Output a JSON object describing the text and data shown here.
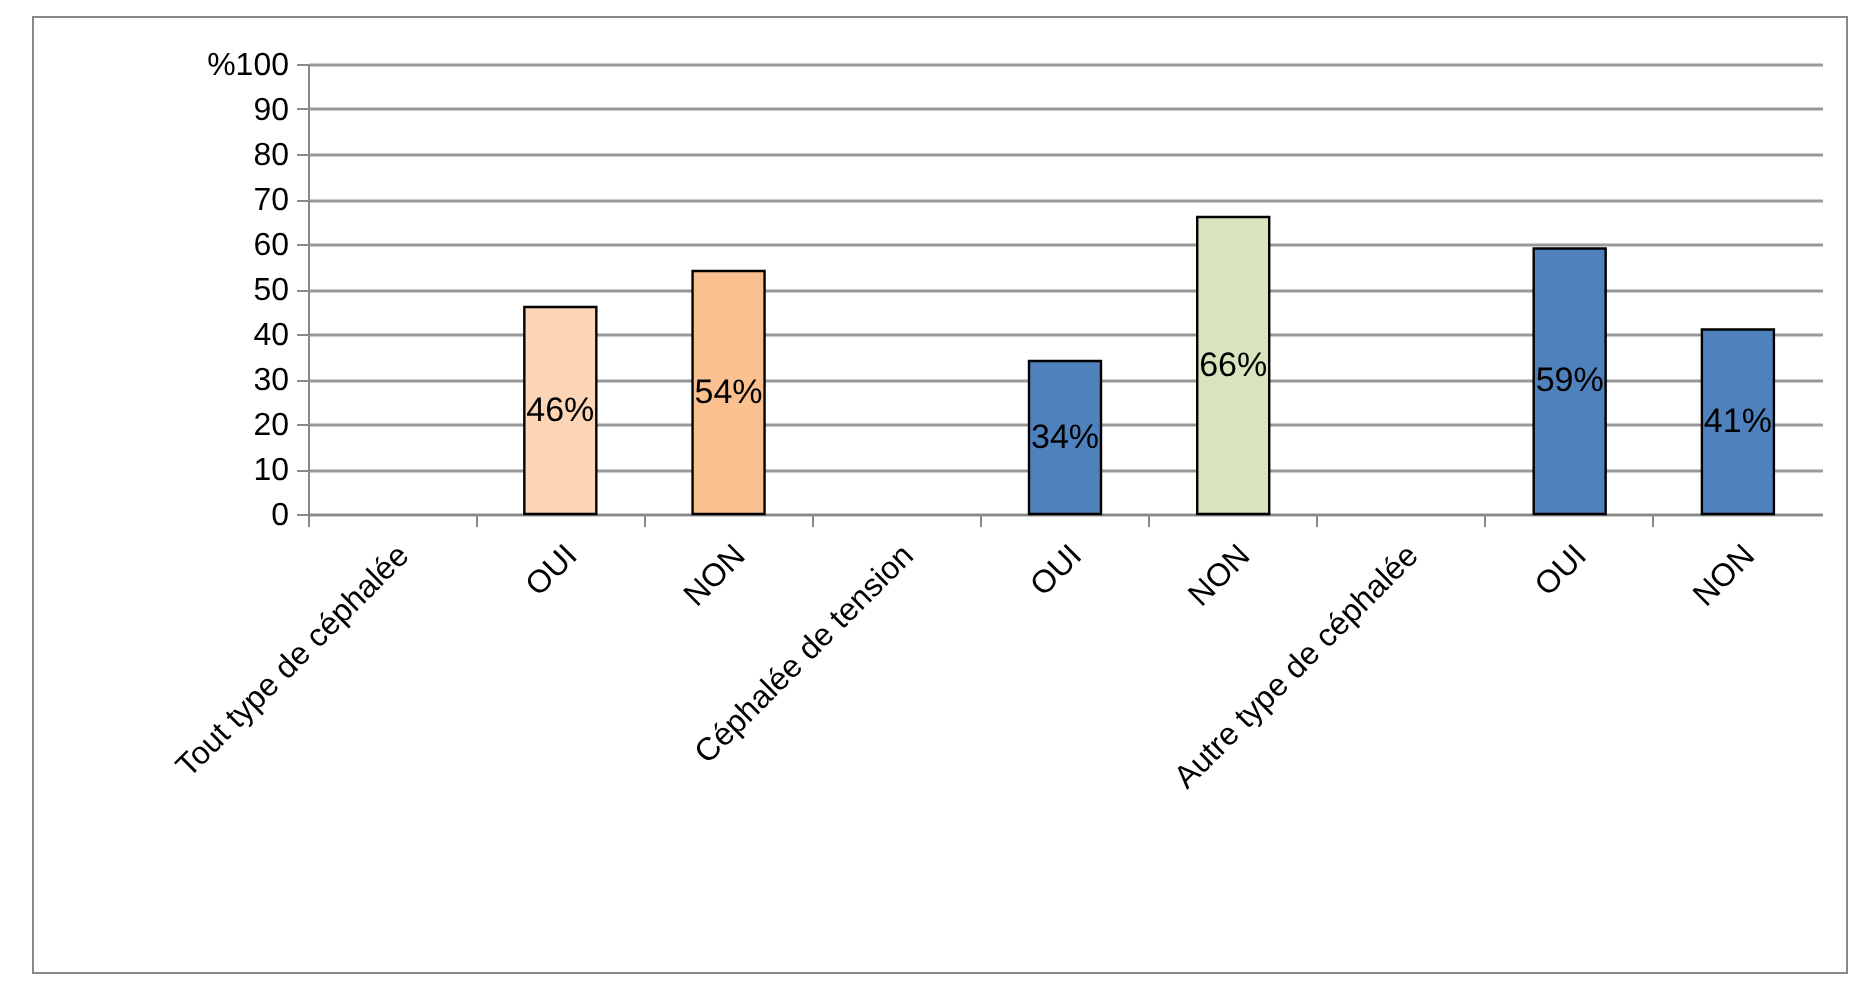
{
  "chart_data": {
    "type": "bar",
    "categories": [
      "Tout type de céphalée",
      "OUI",
      "NON",
      "Céphalée de tension",
      "OUI",
      "NON",
      "Autre type de céphalée",
      "OUI",
      "NON"
    ],
    "values": [
      null,
      46,
      54,
      null,
      34,
      66,
      null,
      59,
      41
    ],
    "colors": [
      "#fbd5b5",
      "#fbd5b5",
      "#fac090",
      "#4f81bd",
      "#4f81bd",
      "#d7e4bd",
      "#4f81bd",
      "#4f81bd",
      "#4f81bd"
    ],
    "value_labels": [
      null,
      "46%",
      "54%",
      null,
      "34%",
      "66%",
      null,
      "59%",
      "41%"
    ],
    "ylim": [
      0,
      100
    ],
    "yticks": [
      0,
      10,
      20,
      30,
      40,
      50,
      60,
      70,
      80,
      {
        "value": 90,
        "label": "90"
      },
      {
        "value": 100,
        "label": "%100"
      }
    ],
    "grid": "y"
  }
}
